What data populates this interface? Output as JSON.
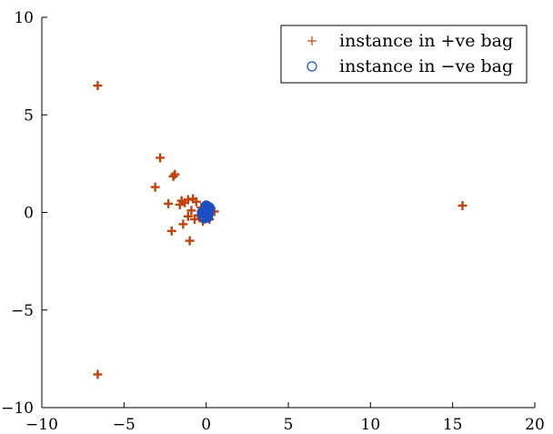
{
  "chart_data": {
    "type": "scatter",
    "title": "",
    "xlabel": "",
    "ylabel": "",
    "xlim": [
      -10,
      20
    ],
    "ylim": [
      -10,
      10
    ],
    "x_ticks": [
      -10,
      -5,
      0,
      5,
      10,
      15,
      20
    ],
    "y_ticks": [
      -10,
      -5,
      0,
      5,
      10
    ],
    "x_tick_labels": [
      "−10",
      "−5",
      "0",
      "5",
      "10",
      "15",
      "20"
    ],
    "y_tick_labels": [
      "−10",
      "−5",
      "0",
      "5",
      "10"
    ],
    "grid": false,
    "legend_position": "top-right",
    "series": [
      {
        "name": "instance in +ve bag",
        "marker": "plus",
        "color": "#C0440E",
        "points": [
          [
            -6.6,
            6.5
          ],
          [
            -6.6,
            -8.3
          ],
          [
            15.6,
            0.35
          ],
          [
            -2.8,
            2.8
          ],
          [
            -1.9,
            1.95
          ],
          [
            -2.0,
            1.85
          ],
          [
            -3.1,
            1.3
          ],
          [
            -2.3,
            0.45
          ],
          [
            -1.5,
            0.6
          ],
          [
            -1.3,
            0.5
          ],
          [
            -1.1,
            0.65
          ],
          [
            -0.8,
            0.7
          ],
          [
            -0.6,
            0.55
          ],
          [
            -0.9,
            0.1
          ],
          [
            -1.1,
            -0.2
          ],
          [
            -1.4,
            -0.6
          ],
          [
            -0.7,
            -0.35
          ],
          [
            -0.5,
            -0.15
          ],
          [
            -0.3,
            0.25
          ],
          [
            -2.1,
            -0.95
          ],
          [
            -1.0,
            -1.45
          ],
          [
            0.5,
            0.05
          ],
          [
            -1.6,
            0.4
          ],
          [
            -0.2,
            -0.45
          ],
          [
            0.2,
            -0.35
          ]
        ]
      },
      {
        "name": "instance in −ve bag",
        "marker": "circle",
        "color": "#1A4FC4",
        "points": [
          [
            0.1,
            0.3
          ],
          [
            -0.1,
            0.1
          ],
          [
            0.0,
            -0.1
          ],
          [
            0.2,
            0.15
          ],
          [
            -0.2,
            -0.2
          ],
          [
            0.1,
            -0.25
          ],
          [
            0.05,
            0.0
          ],
          [
            -0.05,
            0.2
          ],
          [
            0.15,
            -0.05
          ],
          [
            -0.15,
            0.05
          ],
          [
            0.0,
            0.35
          ],
          [
            0.1,
            0.05
          ],
          [
            -0.1,
            -0.3
          ],
          [
            0.2,
            0.25
          ],
          [
            -0.25,
            0.0
          ]
        ]
      }
    ]
  }
}
